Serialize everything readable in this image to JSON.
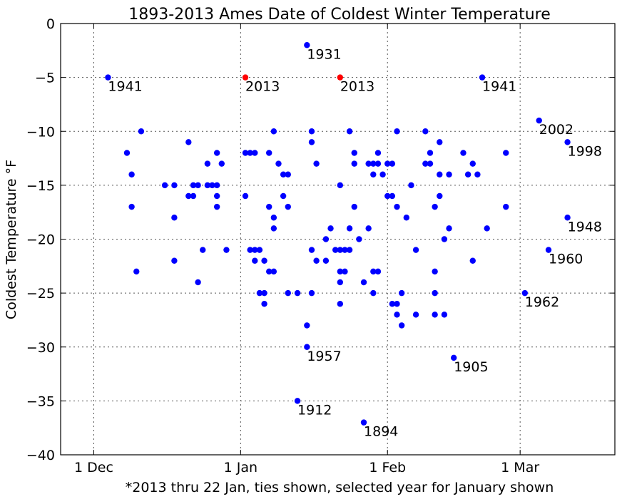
{
  "chart_data": {
    "type": "scatter",
    "title": "1893-2013 Ames Date of Coldest Winter Temperature",
    "xlabel": "*2013 thru 22 Jan, ties shown, selected year for January shown",
    "ylabel": "Coldest Temperature °F",
    "x_axis": {
      "type": "date",
      "range": [
        "1893-11-24",
        "1894-03-21"
      ],
      "ticks": [
        {
          "date": "1893-12-01",
          "label": "1 Dec"
        },
        {
          "date": "1894-01-01",
          "label": "1 Jan"
        },
        {
          "date": "1894-02-01",
          "label": "1 Feb"
        },
        {
          "date": "1894-03-01",
          "label": "1 Mar"
        }
      ]
    },
    "ylim": [
      -40,
      0
    ],
    "y_ticks": [
      0,
      -5,
      -10,
      -15,
      -20,
      -25,
      -30,
      -35,
      -40
    ],
    "grid": true,
    "colors": {
      "points": "#0000ff",
      "highlight": "#ff0000"
    },
    "series": [
      {
        "color": "#0000ff",
        "points": [
          [
            "1893-12-04",
            -5
          ],
          [
            "1893-12-08",
            -12
          ],
          [
            "1893-12-09",
            -14
          ],
          [
            "1893-12-09",
            -17
          ],
          [
            "1893-12-10",
            -23
          ],
          [
            "1893-12-11",
            -10
          ],
          [
            "1893-12-16",
            -15
          ],
          [
            "1893-12-18",
            -15
          ],
          [
            "1893-12-18",
            -18
          ],
          [
            "1893-12-18",
            -22
          ],
          [
            "1893-12-21",
            -11
          ],
          [
            "1893-12-21",
            -16
          ],
          [
            "1893-12-22",
            -16
          ],
          [
            "1893-12-22",
            -15
          ],
          [
            "1893-12-23",
            -15
          ],
          [
            "1893-12-23",
            -24
          ],
          [
            "1893-12-24",
            -21
          ],
          [
            "1893-12-25",
            -13
          ],
          [
            "1893-12-25",
            -15
          ],
          [
            "1893-12-26",
            -15
          ],
          [
            "1893-12-27",
            -15
          ],
          [
            "1893-12-27",
            -12
          ],
          [
            "1893-12-27",
            -16
          ],
          [
            "1893-12-27",
            -17
          ],
          [
            "1893-12-28",
            -13
          ],
          [
            "1893-12-29",
            -21
          ],
          [
            "1894-01-02",
            -12
          ],
          [
            "1894-01-02",
            -16
          ],
          [
            "1894-01-03",
            -12
          ],
          [
            "1894-01-03",
            -21
          ],
          [
            "1894-01-04",
            -12
          ],
          [
            "1894-01-04",
            -22
          ],
          [
            "1894-01-04",
            -21
          ],
          [
            "1894-01-05",
            -21
          ],
          [
            "1894-01-05",
            -25
          ],
          [
            "1894-01-06",
            -22
          ],
          [
            "1894-01-06",
            -25
          ],
          [
            "1894-01-06",
            -26
          ],
          [
            "1894-01-07",
            -17
          ],
          [
            "1894-01-07",
            -12
          ],
          [
            "1894-01-07",
            -23
          ],
          [
            "1894-01-08",
            -10
          ],
          [
            "1894-01-08",
            -18
          ],
          [
            "1894-01-08",
            -19
          ],
          [
            "1894-01-08",
            -23
          ],
          [
            "1894-01-09",
            -13
          ],
          [
            "1894-01-10",
            -16
          ],
          [
            "1894-01-10",
            -14
          ],
          [
            "1894-01-11",
            -17
          ],
          [
            "1894-01-11",
            -14
          ],
          [
            "1894-01-11",
            -25
          ],
          [
            "1894-01-13",
            -35
          ],
          [
            "1894-01-13",
            -25
          ],
          [
            "1894-01-15",
            -2
          ],
          [
            "1894-01-15",
            -28
          ],
          [
            "1894-01-15",
            -30
          ],
          [
            "1894-01-16",
            -10
          ],
          [
            "1894-01-16",
            -11
          ],
          [
            "1894-01-16",
            -21
          ],
          [
            "1894-01-16",
            -25
          ],
          [
            "1894-01-17",
            -13
          ],
          [
            "1894-01-17",
            -22
          ],
          [
            "1894-01-19",
            -22
          ],
          [
            "1894-01-19",
            -20
          ],
          [
            "1894-01-20",
            -19
          ],
          [
            "1894-01-21",
            -21
          ],
          [
            "1894-01-22",
            -21
          ],
          [
            "1894-01-22",
            -15
          ],
          [
            "1894-01-22",
            -23
          ],
          [
            "1894-01-22",
            -24
          ],
          [
            "1894-01-22",
            -26
          ],
          [
            "1894-01-23",
            -21
          ],
          [
            "1894-01-23",
            -23
          ],
          [
            "1894-01-24",
            -10
          ],
          [
            "1894-01-24",
            -19
          ],
          [
            "1894-01-24",
            -21
          ],
          [
            "1894-01-25",
            -12
          ],
          [
            "1894-01-25",
            -13
          ],
          [
            "1894-01-25",
            -17
          ],
          [
            "1894-01-26",
            -20
          ],
          [
            "1894-01-27",
            -37
          ],
          [
            "1894-01-27",
            -24
          ],
          [
            "1894-01-28",
            -13
          ],
          [
            "1894-01-28",
            -19
          ],
          [
            "1894-01-29",
            -13
          ],
          [
            "1894-01-29",
            -14
          ],
          [
            "1894-01-29",
            -23
          ],
          [
            "1894-01-29",
            -25
          ],
          [
            "1894-01-30",
            -12
          ],
          [
            "1894-01-30",
            -13
          ],
          [
            "1894-01-30",
            -23
          ],
          [
            "1894-01-31",
            -14
          ],
          [
            "1894-02-01",
            -13
          ],
          [
            "1894-02-01",
            -16
          ],
          [
            "1894-02-02",
            -13
          ],
          [
            "1894-02-02",
            -16
          ],
          [
            "1894-02-02",
            -26
          ],
          [
            "1894-02-03",
            -26
          ],
          [
            "1894-02-03",
            -27
          ],
          [
            "1894-02-03",
            -10
          ],
          [
            "1894-02-03",
            -17
          ],
          [
            "1894-02-04",
            -25
          ],
          [
            "1894-02-04",
            -28
          ],
          [
            "1894-02-05",
            -18
          ],
          [
            "1894-02-06",
            -15
          ],
          [
            "1894-02-07",
            -21
          ],
          [
            "1894-02-07",
            -27
          ],
          [
            "1894-02-09",
            -10
          ],
          [
            "1894-02-09",
            -13
          ],
          [
            "1894-02-10",
            -13
          ],
          [
            "1894-02-10",
            -12
          ],
          [
            "1894-02-11",
            -17
          ],
          [
            "1894-02-11",
            -23
          ],
          [
            "1894-02-11",
            -25
          ],
          [
            "1894-02-11",
            -27
          ],
          [
            "1894-02-12",
            -11
          ],
          [
            "1894-02-12",
            -14
          ],
          [
            "1894-02-12",
            -16
          ],
          [
            "1894-02-13",
            -20
          ],
          [
            "1894-02-13",
            -27
          ],
          [
            "1894-02-14",
            -14
          ],
          [
            "1894-02-14",
            -19
          ],
          [
            "1894-02-15",
            -31
          ],
          [
            "1894-02-17",
            -12
          ],
          [
            "1894-02-18",
            -14
          ],
          [
            "1894-02-19",
            -13
          ],
          [
            "1894-02-19",
            -22
          ],
          [
            "1894-02-20",
            -14
          ],
          [
            "1894-02-21",
            -5
          ],
          [
            "1894-02-22",
            -19
          ],
          [
            "1894-02-26",
            -12
          ],
          [
            "1894-02-26",
            -17
          ],
          [
            "1894-03-02",
            -25
          ],
          [
            "1894-03-05",
            -9
          ],
          [
            "1894-03-07",
            -21
          ],
          [
            "1894-03-11",
            -11
          ],
          [
            "1894-03-11",
            -18
          ]
        ]
      },
      {
        "color": "#ff0000",
        "points": [
          [
            "1894-01-02",
            -5
          ],
          [
            "1894-01-22",
            -5
          ]
        ]
      }
    ],
    "annotations": [
      {
        "date": "1893-12-04",
        "y": -5,
        "text": "1941"
      },
      {
        "date": "1894-01-02",
        "y": -5,
        "text": "2013"
      },
      {
        "date": "1894-01-22",
        "y": -5,
        "text": "2013"
      },
      {
        "date": "1894-01-15",
        "y": -2,
        "text": "1931"
      },
      {
        "date": "1894-02-21",
        "y": -5,
        "text": "1941"
      },
      {
        "date": "1894-03-05",
        "y": -9,
        "text": "2002"
      },
      {
        "date": "1894-03-11",
        "y": -11,
        "text": "1998"
      },
      {
        "date": "1894-03-11",
        "y": -18,
        "text": "1948"
      },
      {
        "date": "1894-03-07",
        "y": -21,
        "text": "1960"
      },
      {
        "date": "1894-03-02",
        "y": -25,
        "text": "1962"
      },
      {
        "date": "1894-01-15",
        "y": -30,
        "text": "1957"
      },
      {
        "date": "1894-02-15",
        "y": -31,
        "text": "1905"
      },
      {
        "date": "1894-01-13",
        "y": -35,
        "text": "1912"
      },
      {
        "date": "1894-01-27",
        "y": -37,
        "text": "1894"
      }
    ]
  }
}
